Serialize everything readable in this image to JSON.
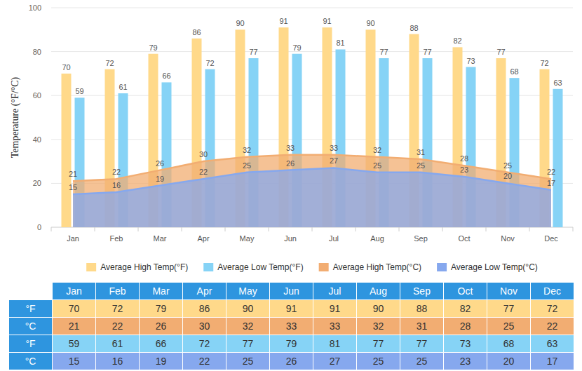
{
  "chart_data": {
    "type": "bar",
    "y_label": "Temperature (°F/°C)",
    "categories": [
      "Jan",
      "Feb",
      "Mar",
      "Apr",
      "May",
      "Jun",
      "Jul",
      "Aug",
      "Sep",
      "Oct",
      "Nov",
      "Dec"
    ],
    "series": [
      {
        "name": "Average High Temp(°F)",
        "type": "bar",
        "color": "#ffd98a",
        "values": [
          70,
          72,
          79,
          86,
          90,
          91,
          91,
          90,
          88,
          82,
          77,
          72
        ]
      },
      {
        "name": "Average Low Temp(°F)",
        "type": "bar",
        "color": "#86d3f6",
        "values": [
          59,
          61,
          66,
          72,
          77,
          79,
          81,
          77,
          77,
          73,
          68,
          63
        ]
      },
      {
        "name": "Average High Temp(°C)",
        "type": "area",
        "color": "#f2ad72",
        "values": [
          21,
          22,
          26,
          30,
          32,
          33,
          33,
          32,
          31,
          28,
          25,
          22
        ]
      },
      {
        "name": "Average Low Temp(°C)",
        "type": "area",
        "color": "#86a8ee",
        "values": [
          15,
          16,
          19,
          22,
          25,
          26,
          27,
          25,
          25,
          23,
          20,
          17
        ]
      }
    ],
    "ylim": [
      0,
      100
    ],
    "yticks": [
      0,
      20,
      40,
      60,
      80,
      100
    ],
    "grid": true,
    "legend": "bottom",
    "data_labels": true
  },
  "table": {
    "row_labels": [
      "°F",
      "°C",
      "°F",
      "°C"
    ],
    "row_series": [
      0,
      2,
      1,
      3
    ]
  }
}
